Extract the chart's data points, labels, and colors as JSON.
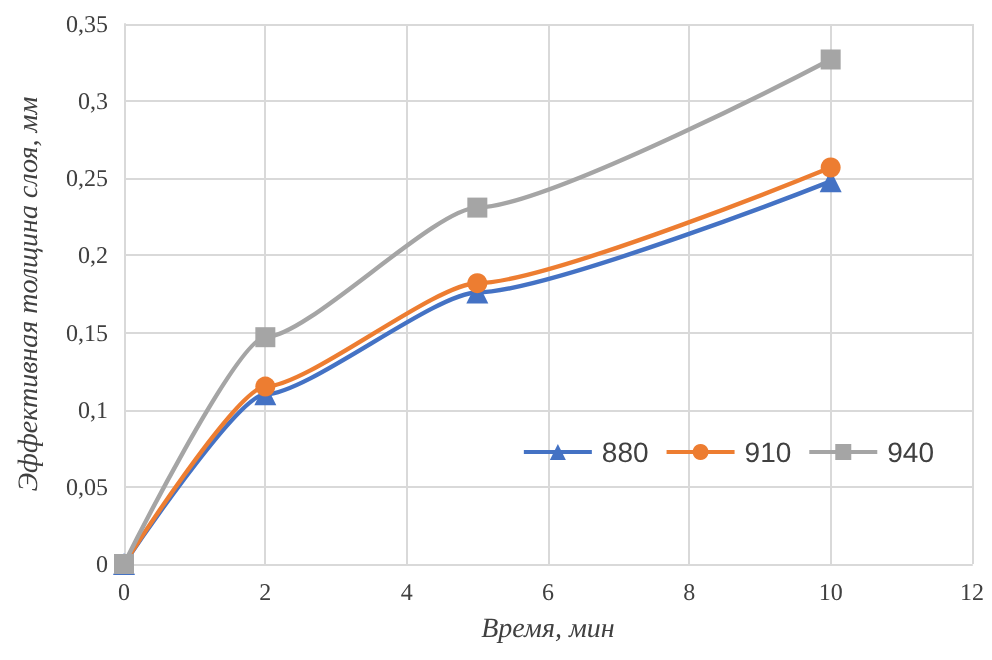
{
  "chart_data": {
    "type": "line",
    "xlabel": "Время, мин",
    "ylabel": "Эффективная толщина слоя, мм",
    "x": [
      0,
      2,
      5,
      10
    ],
    "series": [
      {
        "name": "880",
        "color": "#4472c4",
        "marker": "triangle",
        "values": [
          0,
          0.11,
          0.176,
          0.248
        ]
      },
      {
        "name": "910",
        "color": "#ed7d31",
        "marker": "circle",
        "values": [
          0,
          0.115,
          0.182,
          0.257
        ]
      },
      {
        "name": "940",
        "color": "#a5a5a5",
        "marker": "square",
        "values": [
          0,
          0.147,
          0.231,
          0.327
        ]
      }
    ],
    "xlim": [
      0,
      12
    ],
    "xticks": [
      0,
      2,
      4,
      6,
      8,
      10,
      12
    ],
    "ylim": [
      0,
      0.35
    ],
    "yticks": [
      0,
      {
        "value": 0.05,
        "label": "0,05"
      },
      {
        "value": 0.1,
        "label": "0,1"
      },
      {
        "value": 0.15,
        "label": "0,15"
      },
      {
        "value": 0.2,
        "label": "0,2"
      },
      {
        "value": 0.25,
        "label": "0,25"
      },
      {
        "value": 0.3,
        "label": "0,3"
      },
      {
        "value": 0.35,
        "label": "0,35"
      }
    ],
    "grid": true,
    "legend": "bottom right"
  }
}
